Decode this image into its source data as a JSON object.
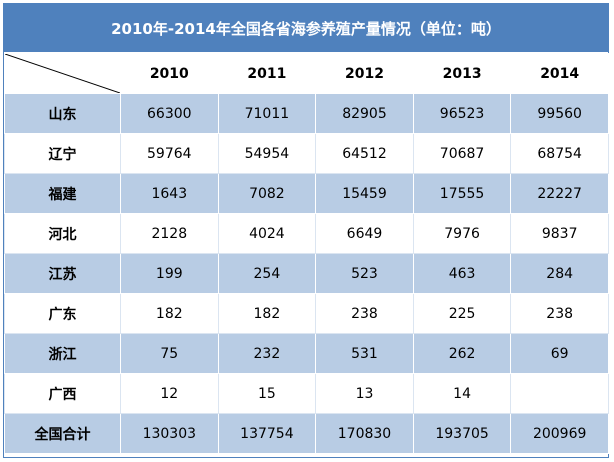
{
  "title": "2010年-2014年全国各省海参养殖产量情况（单位：吨）",
  "columns": [
    "2010",
    "2011",
    "2012",
    "2013",
    "2014"
  ],
  "rows": [
    {
      "province": "山东",
      "values": [
        "66300",
        "71011",
        "82905",
        "96523",
        "99560"
      ]
    },
    {
      "province": "辽宁",
      "values": [
        "59764",
        "54954",
        "64512",
        "70687",
        "68754"
      ]
    },
    {
      "province": "福建",
      "values": [
        "1643",
        "7082",
        "15459",
        "17555",
        "22227"
      ]
    },
    {
      "province": "河北",
      "values": [
        "2128",
        "4024",
        "6649",
        "7976",
        "9837"
      ]
    },
    {
      "province": "江苏",
      "values": [
        "199",
        "254",
        "523",
        "463",
        "284"
      ]
    },
    {
      "province": "广东",
      "values": [
        "182",
        "182",
        "238",
        "225",
        "238"
      ]
    },
    {
      "province": "浙江",
      "values": [
        "75",
        "232",
        "531",
        "262",
        "69"
      ]
    },
    {
      "province": "广西",
      "values": [
        "12",
        "15",
        "13",
        "14",
        ""
      ]
    },
    {
      "province": "全国合计",
      "values": [
        "130303",
        "137754",
        "170830",
        "193705",
        "200969"
      ]
    }
  ],
  "colors": {
    "header_bg": "#4f81bd",
    "band_bg": "#b8cce4",
    "text": "#000000"
  }
}
